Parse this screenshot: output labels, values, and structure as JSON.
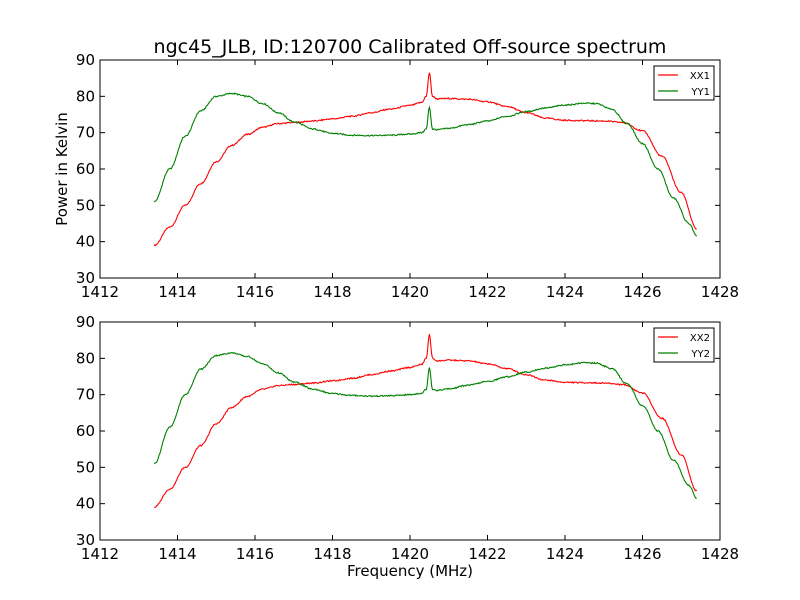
{
  "title": "ngc45_JLB, ID:120700 Calibrated Off-source spectrum",
  "colors": {
    "xx": "#ff0000",
    "yy": "#008000"
  },
  "chart_data": [
    {
      "type": "line",
      "ylabel": "Power in Kelvin",
      "xlabel": "",
      "xlim": [
        1412,
        1428
      ],
      "ylim": [
        30,
        90
      ],
      "xticks": [
        1412,
        1414,
        1416,
        1418,
        1420,
        1422,
        1424,
        1426,
        1428
      ],
      "yticks": [
        30,
        40,
        50,
        60,
        70,
        80,
        90
      ],
      "legend": "top-right",
      "series": [
        {
          "name": "XX1",
          "color": "#ff0000",
          "x": [
            1413.4,
            1413.8,
            1414.2,
            1414.6,
            1415.0,
            1415.4,
            1415.8,
            1416.2,
            1416.6,
            1417.0,
            1417.5,
            1418.0,
            1418.5,
            1419.0,
            1419.5,
            1420.0,
            1420.3,
            1420.42,
            1420.5,
            1420.58,
            1420.7,
            1421.0,
            1421.5,
            1422.0,
            1422.5,
            1423.0,
            1423.5,
            1424.0,
            1424.5,
            1425.0,
            1425.5,
            1426.0,
            1426.5,
            1427.0,
            1427.4
          ],
          "y": [
            39,
            44,
            50,
            56,
            62,
            66.5,
            69.5,
            71.5,
            72.5,
            72.8,
            73.2,
            73.8,
            74.5,
            75.5,
            76.5,
            77.5,
            78.3,
            80,
            86.5,
            80,
            79.3,
            79.4,
            79.2,
            78.5,
            77.2,
            75.5,
            74,
            73.4,
            73.3,
            73.2,
            72.8,
            70.5,
            63.5,
            53.5,
            43.5
          ]
        },
        {
          "name": "YY1",
          "color": "#008000",
          "x": [
            1413.4,
            1413.8,
            1414.2,
            1414.6,
            1415.0,
            1415.4,
            1415.8,
            1416.2,
            1416.6,
            1417.0,
            1417.5,
            1418.0,
            1418.5,
            1419.0,
            1419.5,
            1420.0,
            1420.3,
            1420.42,
            1420.5,
            1420.58,
            1420.7,
            1421.0,
            1421.5,
            1422.0,
            1422.5,
            1423.0,
            1423.5,
            1424.0,
            1424.5,
            1424.8,
            1425.2,
            1425.6,
            1426.0,
            1426.4,
            1426.8,
            1427.2,
            1427.4
          ],
          "y": [
            51,
            60,
            69,
            76,
            80,
            80.8,
            80,
            78,
            75.5,
            73,
            71,
            69.8,
            69.3,
            69.2,
            69.3,
            69.6,
            70,
            71,
            77,
            71,
            70.8,
            71.2,
            72.2,
            73.2,
            74.5,
            75.8,
            76.8,
            77.6,
            78.1,
            78,
            76.5,
            72.5,
            67,
            60,
            52,
            45,
            41.5
          ]
        }
      ]
    },
    {
      "type": "line",
      "ylabel": "",
      "xlabel": "Frequency (MHz)",
      "xlim": [
        1412,
        1428
      ],
      "ylim": [
        30,
        90
      ],
      "xticks": [
        1412,
        1414,
        1416,
        1418,
        1420,
        1422,
        1424,
        1426,
        1428
      ],
      "yticks": [
        30,
        40,
        50,
        60,
        70,
        80,
        90
      ],
      "legend": "top-right",
      "series": [
        {
          "name": "XX2",
          "color": "#ff0000",
          "x": [
            1413.4,
            1413.8,
            1414.2,
            1414.6,
            1415.0,
            1415.4,
            1415.8,
            1416.2,
            1416.6,
            1417.0,
            1417.5,
            1418.0,
            1418.5,
            1419.0,
            1419.5,
            1420.0,
            1420.3,
            1420.42,
            1420.5,
            1420.58,
            1420.7,
            1421.0,
            1421.5,
            1422.0,
            1422.5,
            1423.0,
            1423.5,
            1424.0,
            1424.5,
            1425.0,
            1425.5,
            1426.0,
            1426.5,
            1427.0,
            1427.4
          ],
          "y": [
            39,
            44,
            50,
            56,
            62,
            66.5,
            69.5,
            71.5,
            72.5,
            72.8,
            73.2,
            73.8,
            74.5,
            75.5,
            76.5,
            77.5,
            78.3,
            80,
            86.5,
            80,
            79.3,
            79.5,
            79.3,
            78.5,
            77.2,
            75.5,
            74,
            73.4,
            73.3,
            73.2,
            72.8,
            70.5,
            63.5,
            53.5,
            43.5
          ]
        },
        {
          "name": "YY2",
          "color": "#008000",
          "x": [
            1413.4,
            1413.8,
            1414.2,
            1414.6,
            1415.0,
            1415.4,
            1415.8,
            1416.2,
            1416.6,
            1417.0,
            1417.5,
            1418.0,
            1418.5,
            1419.0,
            1419.5,
            1420.0,
            1420.3,
            1420.42,
            1420.5,
            1420.58,
            1420.7,
            1421.0,
            1421.5,
            1422.0,
            1422.5,
            1423.0,
            1423.5,
            1424.0,
            1424.5,
            1424.8,
            1425.2,
            1425.6,
            1426.0,
            1426.4,
            1426.8,
            1427.2,
            1427.4
          ],
          "y": [
            51,
            61,
            70,
            77,
            80.8,
            81.5,
            80.5,
            78.5,
            76,
            73.5,
            71.5,
            70.3,
            69.8,
            69.6,
            69.7,
            70,
            70.4,
            71.5,
            77.5,
            71.5,
            71.2,
            71.6,
            72.6,
            73.6,
            74.9,
            76.2,
            77.3,
            78.2,
            78.8,
            78.7,
            77.2,
            73,
            67,
            60,
            52,
            45,
            41.5
          ]
        }
      ]
    }
  ]
}
